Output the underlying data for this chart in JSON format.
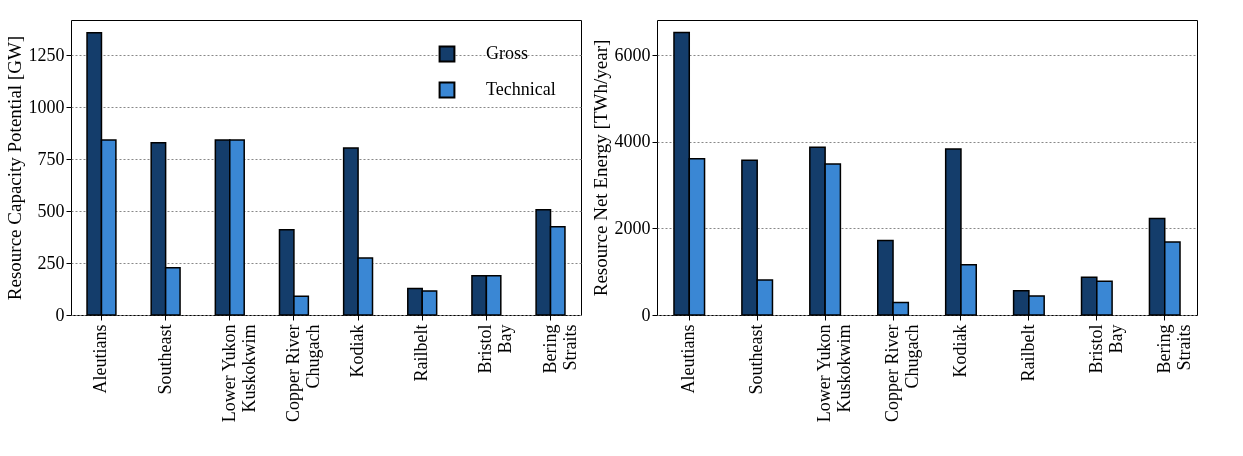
{
  "chart_data": [
    {
      "type": "bar",
      "ylabel": "Resource Capacity Potential [GW]",
      "categories": [
        "Aleutians",
        "Southeast",
        "Lower Yukon\nKuskokwim",
        "Copper River\nChugach",
        "Kodiak",
        "Railbelt",
        "Bristol\nBay",
        "Bering\nStraits"
      ],
      "series": [
        {
          "name": "Gross",
          "color": "#143d6b",
          "values": [
            1359,
            829,
            842,
            410,
            804,
            128,
            189,
            507
          ]
        },
        {
          "name": "Technical",
          "color": "#3a87d4",
          "values": [
            842,
            227,
            842,
            90,
            274,
            116,
            189,
            425
          ]
        }
      ],
      "ylim": [
        0,
        1420
      ],
      "yticks": [
        0,
        250,
        500,
        750,
        1000,
        1250
      ],
      "grid": "y",
      "legend": "top right"
    },
    {
      "type": "bar",
      "ylabel": "Resource Net Energy [TWh/year]",
      "categories": [
        "Aleutians",
        "Southeast",
        "Lower Yukon\nKuskokwim",
        "Copper River\nChugach",
        "Kodiak",
        "Railbelt",
        "Bristol\nBay",
        "Bering\nStraits"
      ],
      "series": [
        {
          "color": "#143d6b",
          "values": [
            6530,
            3580,
            3880,
            1720,
            3840,
            560,
            870,
            2230
          ]
        },
        {
          "color": "#3a87d4",
          "values": [
            3610,
            810,
            3490,
            290,
            1160,
            440,
            780,
            1690
          ]
        }
      ],
      "ylim": [
        0,
        6820
      ],
      "yticks": [
        0,
        2000,
        4000,
        6000
      ],
      "grid": "y"
    }
  ]
}
